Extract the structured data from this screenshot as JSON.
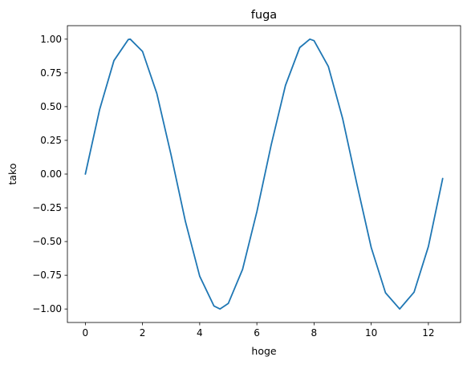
{
  "chart_data": {
    "type": "line",
    "title": "fuga",
    "xlabel": "hoge",
    "ylabel": "tako",
    "xlim": [
      -0.628,
      13.126
    ],
    "ylim": [
      -1.1,
      1.1
    ],
    "grid": false,
    "x_ticks": [
      0,
      2,
      4,
      6,
      8,
      10,
      12
    ],
    "x_tick_labels": [
      "0",
      "2",
      "4",
      "6",
      "8",
      "10",
      "12"
    ],
    "y_ticks": [
      -1.0,
      -0.75,
      -0.5,
      -0.25,
      0.0,
      0.25,
      0.5,
      0.75,
      1.0
    ],
    "y_tick_labels": [
      "−1.00",
      "−0.75",
      "−0.50",
      "−0.25",
      "0.00",
      "0.25",
      "0.50",
      "0.75",
      "1.00"
    ],
    "series": [
      {
        "color": "#1f77b4",
        "x": [
          0,
          0.5,
          1,
          1.5,
          1.571,
          2,
          2.5,
          3,
          3.5,
          4,
          4.5,
          4.712,
          5,
          5.5,
          6,
          6.5,
          7,
          7.5,
          7.854,
          8,
          8.5,
          9,
          9.5,
          10,
          10.5,
          10.996,
          11.5,
          12,
          12.5
        ],
        "y": [
          0,
          0.479,
          0.841,
          0.997,
          1.0,
          0.909,
          0.598,
          0.141,
          -0.351,
          -0.757,
          -0.978,
          -1.0,
          -0.959,
          -0.706,
          -0.279,
          0.215,
          0.657,
          0.938,
          1.0,
          0.989,
          0.798,
          0.412,
          -0.075,
          -0.544,
          -0.88,
          -1.0,
          -0.875,
          -0.537,
          -0.033
        ]
      }
    ]
  }
}
